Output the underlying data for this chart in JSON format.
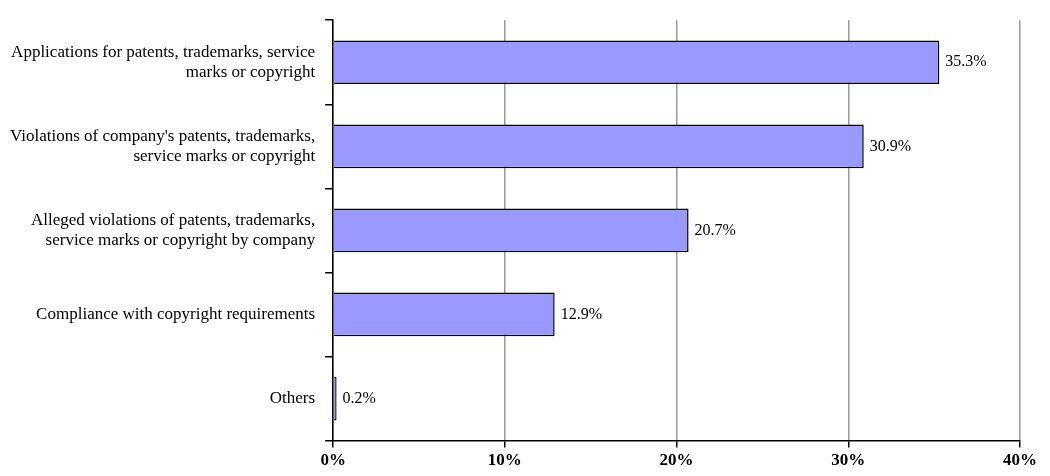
{
  "chart_data": {
    "type": "bar",
    "orientation": "horizontal",
    "categories": [
      "Applications for patents, trademarks, service marks or copyright",
      "Violations of company's patents, trademarks, service marks or copyright",
      "Alleged violations of patents, trademarks, service marks or copyright by company",
      "Compliance with copyright requirements",
      "Others"
    ],
    "values": [
      35.3,
      30.9,
      20.7,
      12.9,
      0.2
    ],
    "value_labels": [
      "35.3%",
      "30.9%",
      "20.7%",
      "12.9%",
      "0.2%"
    ],
    "color": "#9999ff",
    "xlim": [
      0,
      40
    ],
    "xticks": [
      {
        "value": 0,
        "label": "0%"
      },
      {
        "value": 10,
        "label": "10%"
      },
      {
        "value": 20,
        "label": "20%"
      },
      {
        "value": 30,
        "label": "30%"
      },
      {
        "value": 40,
        "label": "40%"
      }
    ],
    "grid": "x",
    "legend": false
  }
}
